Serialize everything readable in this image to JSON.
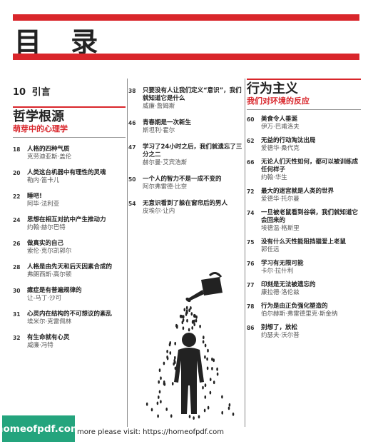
{
  "page": {
    "title": "目 录"
  },
  "intro": {
    "page": "10",
    "label": "引言"
  },
  "column1": {
    "section_title": "哲学根源",
    "section_sub": "萌芽中的心理学",
    "entries": [
      {
        "page": "18",
        "title": "人格的四种气质",
        "author": "克劳迪亚斯·盖伦"
      },
      {
        "page": "20",
        "title": "人类这台机器中有理性的灵魂",
        "author": "勒内·笛卡儿"
      },
      {
        "page": "22",
        "title": "睡吧!",
        "author": "阿毕·法利亚"
      },
      {
        "page": "24",
        "title": "思想在相互对抗中产生推动力",
        "author": "约翰·赫尔巴特"
      },
      {
        "page": "26",
        "title": "做真实的自己",
        "author": "索伦·克尔凯郭尔"
      },
      {
        "page": "28",
        "title": "人格是由先天和后天因素合成的",
        "author": "弗朗西斯·高尔顿"
      },
      {
        "page": "30",
        "title": "癔症是有普遍规律的",
        "author": "让-马丁·沙可"
      },
      {
        "page": "31",
        "title": "心灵内在结构的不可想议的紊乱",
        "author": "埃米尔·克雷佩林"
      },
      {
        "page": "32",
        "title": "有生命就有心灵",
        "author": "威廉·冯特"
      }
    ]
  },
  "column2": {
    "entries": [
      {
        "page": "38",
        "title": "只要没有人让我们定义“意识”，我们就知道它是什么",
        "author": "威廉·詹姆斯"
      },
      {
        "page": "46",
        "title": "青春期是一次新生",
        "author": "斯坦利·霍尔"
      },
      {
        "page": "47",
        "title": "学习了24小时之后，我们就遗忘了三分之二",
        "author": "赫尔曼·艾宾浩斯"
      },
      {
        "page": "50",
        "title": "一个人的智力不是一成不变的",
        "author": "阿尔弗雷德·比奈"
      },
      {
        "page": "54",
        "title": "无意识看到了躲在窗帘后的男人",
        "author": "皮埃尔·让内"
      }
    ]
  },
  "column3": {
    "section_title": "行为主义",
    "section_sub": "我们对环境的反应",
    "entries": [
      {
        "page": "60",
        "title": "美食令人垂涎",
        "author": "伊万·巴甫洛夫"
      },
      {
        "page": "62",
        "title": "无益的行动淘汰出局",
        "author": "爱德华·桑代克"
      },
      {
        "page": "66",
        "title": "无论人们天性如何，都可以被训练成任何样子",
        "author": "约翰·华生"
      },
      {
        "page": "72",
        "title": "最大的迷宫就是人类的世界",
        "author": "爱德华·托尔曼"
      },
      {
        "page": "74",
        "title": "一旦被老鼠看到谷袋，我们就知道它会回来的",
        "author": "埃德温·格斯里"
      },
      {
        "page": "75",
        "title": "没有什么天性能阻挡猫爱上老鼠",
        "author": "郭任远"
      },
      {
        "page": "76",
        "title": "学习有无限可能",
        "author": "卡尔·拉什利"
      },
      {
        "page": "77",
        "title": "印刻是无法被遗忘的",
        "author": "康拉德·洛伦兹"
      },
      {
        "page": "78",
        "title": "行为是由正负强化塑造的",
        "author": "伯尔赫斯·弗雷德里克·斯金纳"
      },
      {
        "page": "86",
        "title": "别想了，放松",
        "author": "约瑟夫·沃尔普"
      }
    ]
  },
  "footer": {
    "badge": "homeofpdf.com",
    "text": "more please visit: https://homeofpdf.com"
  },
  "colors": {
    "accent": "#d9262b",
    "badge": "#24a47d"
  },
  "illustration": "watering-can-over-person-icon"
}
